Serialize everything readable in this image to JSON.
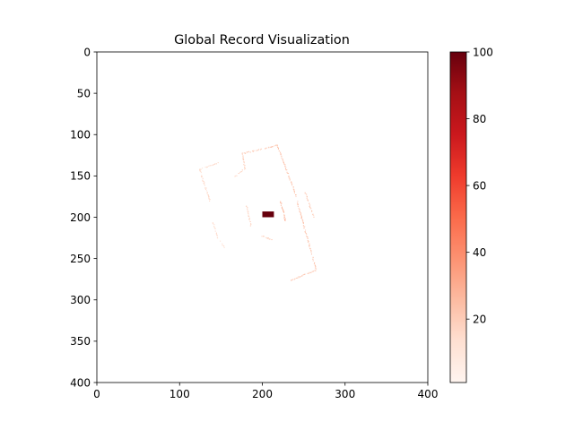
{
  "chart_data": {
    "type": "heatmap",
    "title": "Global Record Visualization",
    "xlabel": "",
    "ylabel": "",
    "xlim": [
      0,
      400
    ],
    "ylim": [
      400,
      0
    ],
    "y_inverted": true,
    "x_ticks": [
      0,
      100,
      200,
      300,
      400
    ],
    "y_ticks": [
      0,
      50,
      100,
      150,
      200,
      250,
      300,
      350,
      400
    ],
    "colormap": "Reds",
    "colorbar": {
      "range": [
        1,
        100
      ],
      "ticks": [
        20,
        40,
        60,
        80,
        100
      ],
      "colors": [
        "#fff5f0",
        "#fee0d2",
        "#fcbba1",
        "#fc9272",
        "#fb6a4a",
        "#ef3b2c",
        "#cb181d",
        "#a50f15",
        "#67000d"
      ]
    },
    "grid": false,
    "cells": [
      {
        "kind": "wall",
        "value": 22,
        "points": [
          [
            218,
            113
          ],
          [
            238,
            166
          ],
          [
            265,
            264
          ]
        ]
      },
      {
        "kind": "wall",
        "value": 20,
        "points": [
          [
            265,
            264
          ],
          [
            235,
            276
          ]
        ]
      },
      {
        "kind": "wall",
        "value": 22,
        "points": [
          [
            218,
            113
          ],
          [
            176,
            123
          ]
        ]
      },
      {
        "kind": "wall",
        "value": 18,
        "points": [
          [
            176,
            123
          ],
          [
            179,
            141
          ]
        ]
      },
      {
        "kind": "wall",
        "value": 18,
        "points": [
          [
            179,
            141
          ],
          [
            167,
            151
          ]
        ]
      },
      {
        "kind": "wall",
        "value": 16,
        "points": [
          [
            147,
            134
          ],
          [
            124,
            142
          ],
          [
            137,
            181
          ]
        ]
      },
      {
        "kind": "wall",
        "value": 14,
        "points": [
          [
            140,
            205
          ],
          [
            146,
            225
          ]
        ]
      },
      {
        "kind": "wall",
        "value": 14,
        "points": [
          [
            149,
            228
          ],
          [
            154,
            236
          ]
        ]
      },
      {
        "kind": "wall",
        "value": 18,
        "points": [
          [
            181,
            186
          ],
          [
            186,
            210
          ]
        ]
      },
      {
        "kind": "wall",
        "value": 20,
        "points": [
          [
            211,
            227
          ],
          [
            200,
            223
          ]
        ]
      },
      {
        "kind": "wall",
        "value": 28,
        "points": [
          [
            222,
            181
          ],
          [
            228,
            204
          ]
        ]
      },
      {
        "kind": "wall",
        "value": 20,
        "points": [
          [
            252,
            170
          ],
          [
            262,
            200
          ]
        ]
      },
      {
        "kind": "block",
        "value": 100,
        "x": [
          200,
          214
        ],
        "y": [
          193,
          200
        ]
      }
    ]
  }
}
